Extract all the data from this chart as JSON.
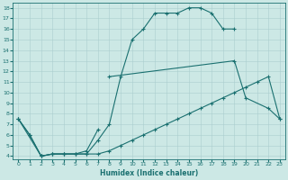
{
  "xlabel": "Humidex (Indice chaleur)",
  "bg_color": "#cce8e5",
  "line_color": "#1a7070",
  "grid_color": "#aacece",
  "xlim": [
    -0.5,
    23.5
  ],
  "ylim": [
    3.7,
    18.5
  ],
  "xticks": [
    0,
    1,
    2,
    3,
    4,
    5,
    6,
    7,
    8,
    9,
    10,
    11,
    12,
    13,
    14,
    15,
    16,
    17,
    18,
    19,
    20,
    21,
    22,
    23
  ],
  "yticks": [
    4,
    5,
    6,
    7,
    8,
    9,
    10,
    11,
    12,
    13,
    14,
    15,
    16,
    17,
    18
  ],
  "curve1_x": [
    0,
    1,
    2,
    3,
    4,
    5,
    6,
    7,
    8,
    9,
    10,
    11,
    12,
    13,
    14,
    15,
    16,
    17,
    18,
    19
  ],
  "curve1_y": [
    7.5,
    6.0,
    4.0,
    4.2,
    4.2,
    4.2,
    4.2,
    5.5,
    7.0,
    11.5,
    15.0,
    16.0,
    17.5,
    17.5,
    17.5,
    18.0,
    18.0,
    17.5,
    16.0,
    16.0
  ],
  "curve2a_x": [
    0,
    1,
    2,
    3,
    4,
    5,
    6,
    7
  ],
  "curve2a_y": [
    7.5,
    6.0,
    4.0,
    4.2,
    4.2,
    4.2,
    4.5,
    6.5
  ],
  "curve2b_x": [
    8,
    19,
    20,
    22,
    23
  ],
  "curve2b_y": [
    11.5,
    13.0,
    9.5,
    8.5,
    7.5
  ],
  "curve3_x": [
    0,
    2,
    3,
    4,
    5,
    6,
    7,
    8,
    9,
    10,
    11,
    12,
    13,
    14,
    15,
    16,
    17,
    18,
    19,
    20,
    21,
    22,
    23
  ],
  "curve3_y": [
    7.5,
    4.0,
    4.2,
    4.2,
    4.2,
    4.2,
    4.2,
    4.5,
    5.0,
    5.5,
    6.0,
    6.5,
    7.0,
    7.5,
    8.0,
    8.5,
    9.0,
    9.5,
    10.0,
    10.5,
    11.0,
    11.5,
    7.5
  ]
}
